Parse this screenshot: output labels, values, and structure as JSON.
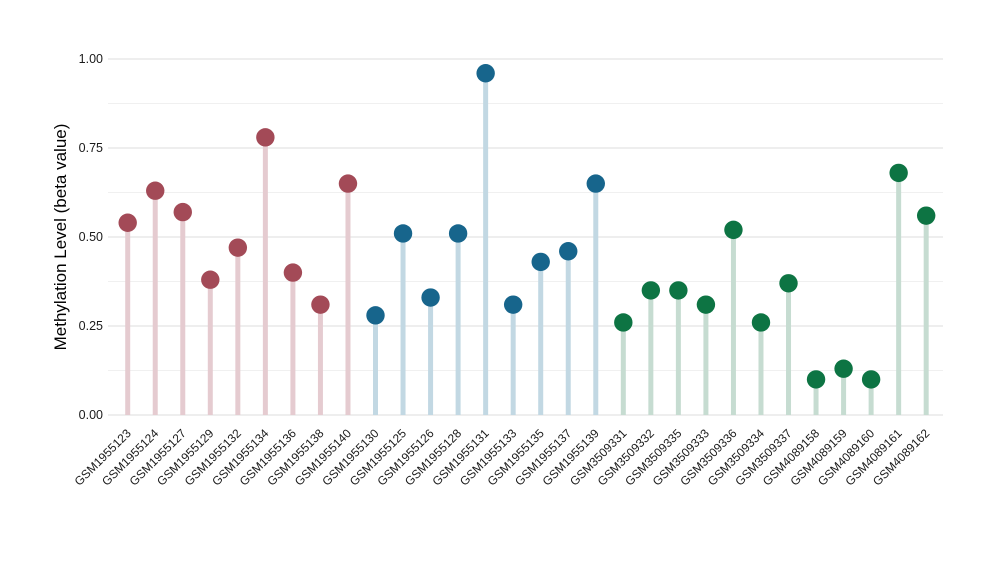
{
  "chart_data": {
    "type": "lollipop",
    "title": "",
    "xlabel": "",
    "ylabel": "Methylation Level (beta value)",
    "ylim": [
      0,
      1
    ],
    "yticks": [
      0,
      0.25,
      0.5,
      0.75,
      1
    ],
    "ytick_labels": [
      "0.00",
      "0.25",
      "0.50",
      "0.75",
      "1.00"
    ],
    "grid": {
      "major_step": 0.25,
      "minor_step": 0.125,
      "major_color": "#e4e4e4",
      "minor_color": "#f0f0f0"
    },
    "legend": "none",
    "groups": [
      {
        "name": "series-1",
        "dot_color": "#a34a57",
        "stem_color": "#e5cbd0",
        "points": [
          {
            "label": "GSM1955123",
            "value": 0.54
          },
          {
            "label": "GSM1955124",
            "value": 0.63
          },
          {
            "label": "GSM1955127",
            "value": 0.57
          },
          {
            "label": "GSM1955129",
            "value": 0.38
          },
          {
            "label": "GSM1955132",
            "value": 0.47
          },
          {
            "label": "GSM1955134",
            "value": 0.78
          },
          {
            "label": "GSM1955136",
            "value": 0.4
          },
          {
            "label": "GSM1955138",
            "value": 0.31
          },
          {
            "label": "GSM1955140",
            "value": 0.65
          }
        ]
      },
      {
        "name": "series-2",
        "dot_color": "#17658c",
        "stem_color": "#c2d8e3",
        "points": [
          {
            "label": "GSM1955130",
            "value": 0.28
          },
          {
            "label": "GSM1955125",
            "value": 0.51
          },
          {
            "label": "GSM1955126",
            "value": 0.33
          },
          {
            "label": "GSM1955128",
            "value": 0.51
          },
          {
            "label": "GSM1955131",
            "value": 0.96
          },
          {
            "label": "GSM1955133",
            "value": 0.31
          },
          {
            "label": "GSM1955135",
            "value": 0.43
          },
          {
            "label": "GSM1955137",
            "value": 0.46
          },
          {
            "label": "GSM1955139",
            "value": 0.65
          }
        ]
      },
      {
        "name": "series-3",
        "dot_color": "#0d7443",
        "stem_color": "#c6dcd1",
        "points": [
          {
            "label": "GSM3509331",
            "value": 0.26
          },
          {
            "label": "GSM3509332",
            "value": 0.35
          },
          {
            "label": "GSM3509335",
            "value": 0.35
          },
          {
            "label": "GSM3509333",
            "value": 0.31
          },
          {
            "label": "GSM3509336",
            "value": 0.52
          },
          {
            "label": "GSM3509334",
            "value": 0.26
          },
          {
            "label": "GSM3509337",
            "value": 0.37
          },
          {
            "label": "GSM4089158",
            "value": 0.1
          },
          {
            "label": "GSM4089159",
            "value": 0.13
          },
          {
            "label": "GSM4089160",
            "value": 0.1
          },
          {
            "label": "GSM4089161",
            "value": 0.68
          },
          {
            "label": "GSM4089162",
            "value": 0.56
          }
        ]
      }
    ]
  }
}
